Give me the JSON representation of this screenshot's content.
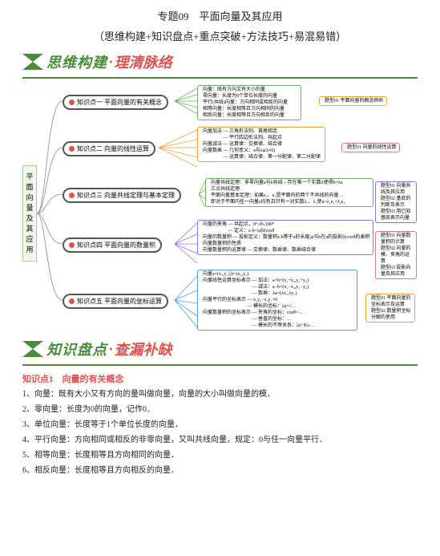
{
  "header": {
    "title1": "专题09　平面向量及其应用",
    "title2": "（思维构建+知识盘点+重点突破+方法技巧+易混易错）"
  },
  "section1": {
    "main": "思维构建",
    "sep": "·",
    "sub": "理清脉络"
  },
  "mindmap": {
    "root": "平面向量及其应用",
    "kp": [
      {
        "id": 1,
        "label": "知识点一 平面向量的有关概念"
      },
      {
        "id": 2,
        "label": "知识点二 向量的线性运算"
      },
      {
        "id": 3,
        "label": "知识点三 向量共线定理与基本定理"
      },
      {
        "id": 4,
        "label": "知识点四 平面向量的数量积"
      },
      {
        "id": 5,
        "label": "知识点五 平面向量的坐标运算"
      }
    ],
    "details": {
      "kp1": [
        "向量：既有方向又有大小的量",
        "零向量：长度为0个单位长度的向量",
        "平行(共线)向量：方向相同或相反的向量",
        "相等向量：长度相等且方向相同的向量",
        "相反向量：长度相等且方向相反的向量"
      ],
      "kp1_tags": [
        "题型01 平面向量的概念辨析"
      ],
      "kp2": [
        "向量加法 — 三角形法则、首尾相连",
        "　　　　 — 平行四边形法则、共起点",
        "向量减法 — 运算律：交换律、结合律",
        "向量数乘 — 几何意义：a与λa(λ≠0)",
        "　　　　 — 运算律：结合律、第一分配律、第二分配律"
      ],
      "kp2_tags": [
        "题型01 向量的线性运算"
      ],
      "kp3": [
        "向量共线定理：非零向量a与b共线⇔存在唯一个实数λ使得b=λa",
        "三点共线定理",
        "平面向量基本定理：如果e₁、e₂是平面内的两个不共线的向量…",
        "即对于平面内任一向量a均有且只有一对实数λ₁、λ₂使a=λ₁e₁+λ₂e₂"
      ],
      "kp3_tags": [
        "题型01 向量共线及其应用",
        "题型02 基底的判断及表示",
        "题型03 用已知基底表示向量"
      ],
      "kp4": [
        "向量的夹角 — 共起点，0°≤θ≤180°",
        "　　　　　 — 定义：a·b=|a||b|cosθ",
        "向量的数量积 — 投影定义：数量积a·b等于a的长度|a|与b在a的投影|b|cosθ的乘积",
        "向量数量积的性质",
        "向量数量积的运算律 — 交换律、数乘律、数乘结合律"
      ],
      "kp4_tags": [
        "题型01 向量数量积的计算",
        "题型02 向量的模、夹角的运算",
        "题型03 投影向量及其应用"
      ],
      "kp5": [
        "向量a=(x₁,y₁),b=(x₂,y₂)",
        "向量线性运算坐标表示 — 加法：a+b=(x₁+x₂,y₁+y₂)",
        "　　　　　　　　　　 — 减法：a−b=(x₁−x₂,y₁−y₂)",
        "　　　　　　　　　　 — 数乘：λa=(λx₁,λy₁)",
        "向量平行的坐标表示 — x₁y₂−x₂y₁=0",
        "　　　　　　　　　 — 模长的坐标：|a|=√…",
        "向量数量积的坐标表示 — 夹角的坐标：cosθ=…",
        "　　　　　　　　　　 — 垂直的坐标：…",
        "　　　　　　　　　　 — 模长的不等关系：|a|+|b|≥…"
      ],
      "kp5_tags": [
        "题型01 平面向量的坐标表示及运算",
        "题型02 数量积坐标分解的使用"
      ]
    }
  },
  "section2": {
    "main": "知识盘点",
    "sep": "·",
    "sub": "查漏补缺"
  },
  "knowledge": {
    "heading": "知识点1　向量的有关概念",
    "items": [
      "1、向量：既有大小又有方向的量叫做向量，向量的大小叫做向量的模．",
      "2、零向量：长度为0的向量，记作0．",
      "3、单位向量：长度等于1个单位长度的向量．",
      "4、平行向量：方向相同或相反的非零向量，又叫共线向量，规定：0与任一向量平行．",
      "5、相等向量：长度相等且方向相同的向量．",
      "6、相反向量：长度相等且方向相反的向量．"
    ]
  },
  "colors": {
    "green": "#4a8b3a",
    "red": "#d9534f",
    "node_green": "#6fb05e",
    "node_orange": "#e8a33d",
    "node_pink": "#d974a8",
    "node_purple": "#9370db",
    "node_blue": "#5a9bd5"
  }
}
